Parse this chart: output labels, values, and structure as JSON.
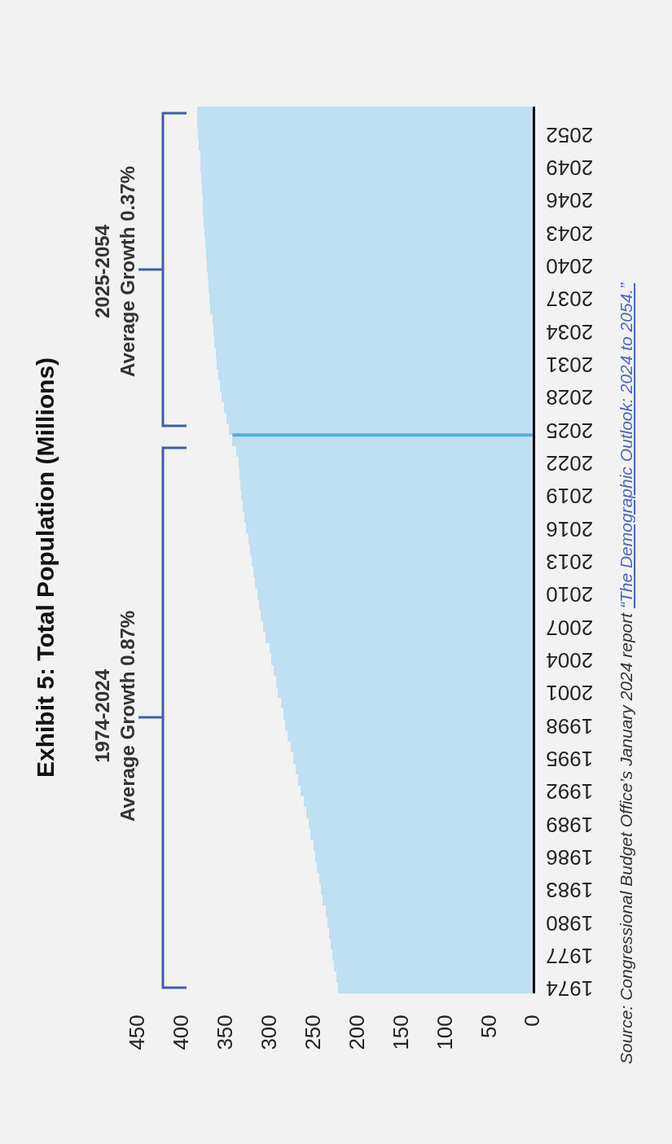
{
  "chart_data": {
    "type": "bar",
    "orientation": "horizontal",
    "title": "Exhibit 5: Total Population (Millions)",
    "x": [
      1974,
      1975,
      1976,
      1977,
      1978,
      1979,
      1980,
      1981,
      1982,
      1983,
      1984,
      1985,
      1986,
      1987,
      1988,
      1989,
      1990,
      1991,
      1992,
      1993,
      1994,
      1995,
      1996,
      1997,
      1998,
      1999,
      2000,
      2001,
      2002,
      2003,
      2004,
      2005,
      2006,
      2007,
      2008,
      2009,
      2010,
      2011,
      2012,
      2013,
      2014,
      2015,
      2016,
      2017,
      2018,
      2019,
      2020,
      2021,
      2022,
      2023,
      2024,
      2025,
      2026,
      2027,
      2028,
      2029,
      2030,
      2031,
      2032,
      2033,
      2034,
      2035,
      2036,
      2037,
      2038,
      2039,
      2040,
      2041,
      2042,
      2043,
      2044,
      2045,
      2046,
      2047,
      2048,
      2049,
      2050,
      2051,
      2052,
      2053,
      2054
    ],
    "values": [
      222,
      224,
      226,
      228,
      230,
      232,
      234,
      236,
      239,
      241,
      243,
      246,
      248,
      250,
      253,
      255,
      258,
      261,
      264,
      267,
      270,
      273,
      276,
      279,
      282,
      284,
      287,
      290,
      292,
      295,
      298,
      300,
      304,
      307,
      310,
      312,
      314,
      316,
      318,
      320,
      322,
      324,
      327,
      328,
      330,
      332,
      333,
      334,
      335,
      338,
      342,
      346,
      349,
      352,
      354,
      356,
      358,
      360,
      361,
      363,
      364,
      365,
      367,
      368,
      369,
      370,
      371,
      372,
      373,
      374,
      375,
      376,
      376,
      377,
      378,
      379,
      379,
      380,
      381,
      382,
      382
    ],
    "color": "#bfdff3",
    "xlim": [
      450,
      0
    ],
    "xticks": [
      0,
      50,
      100,
      150,
      200,
      250,
      300,
      350,
      400,
      450
    ],
    "ylim": [
      1973.5,
      2054.5
    ],
    "yticks": [
      1974,
      1977,
      1980,
      1983,
      1986,
      1989,
      1992,
      1995,
      1998,
      2001,
      2004,
      2007,
      2010,
      2013,
      2016,
      2019,
      2022,
      2025,
      2028,
      2031,
      2034,
      2037,
      2040,
      2043,
      2046,
      2049,
      2052
    ],
    "grid": false,
    "ref_lines": [
      {
        "axis": "y",
        "value": 2024.5,
        "color": "#5aaae0"
      }
    ],
    "annotations": [
      "1974-2024\nAverage Growth 0.87%",
      "2025-2054\nAverage Growth 0.37%",
      "Source: Congressional Budget Office’s January 2024 report ",
      "“The Demographic Outlook: 2024 to 2054.”"
    ]
  }
}
